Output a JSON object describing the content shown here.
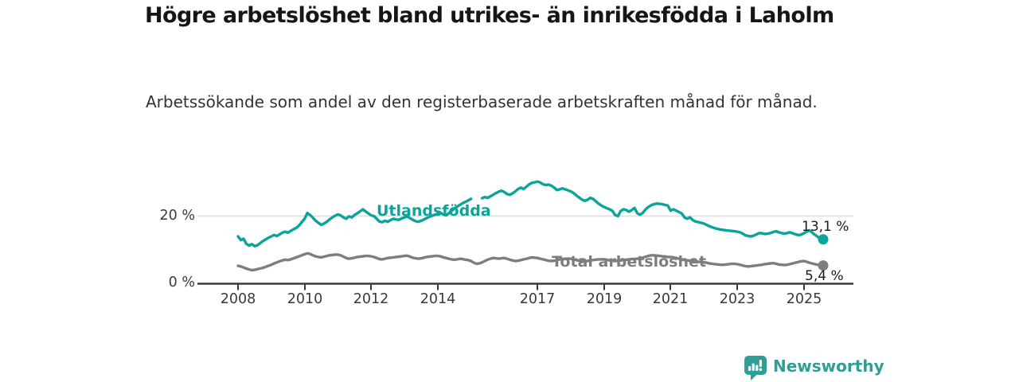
{
  "header": {
    "title": "Högre arbetslöshet bland utrikes- än inrikesfödda i Laholm",
    "subtitle": "Arbetssökande som andel av den registerbaserade arbetskraften månad för månad."
  },
  "footer": {
    "brand": "Newsworthy",
    "logo_icon": "newsworthy-speech-bubble-bar-chart-icon"
  },
  "colors": {
    "foreign_born_line": "#0ba49a",
    "total_line": "#7e7e82",
    "axis": "#3a3a3a",
    "gridline": "#dcdcdc",
    "value_text": "#1a1a1a",
    "brand_teal": "#2f9e99"
  },
  "chart_data": {
    "type": "line",
    "title": "Högre arbetslöshet bland utrikes- än inrikesfödda i Laholm",
    "subtitle": "Arbetssökande som andel av den registerbaserade arbetskraften månad för månad.",
    "unit": "percent",
    "frequency": "monthly",
    "x_start": "2008-01",
    "x_end": "2025-08",
    "ylim": [
      0,
      31
    ],
    "grid": "single horizontal gridline at 20 %",
    "legend": "inline labels on lines",
    "note": "Utlandsfödda series has missing data Feb–Apr 2015 (gap in line)",
    "yticks": [
      {
        "value": 0,
        "label": "0 %"
      },
      {
        "value": 20,
        "label": "20 %"
      }
    ],
    "xticks": [
      {
        "year": 2008,
        "label": "2008"
      },
      {
        "year": 2010,
        "label": "2010"
      },
      {
        "year": 2012,
        "label": "2012"
      },
      {
        "year": 2014,
        "label": "2014"
      },
      {
        "year": 2017,
        "label": "2017"
      },
      {
        "year": 2019,
        "label": "2019"
      },
      {
        "year": 2021,
        "label": "2021"
      },
      {
        "year": 2023,
        "label": "2023"
      },
      {
        "year": 2025,
        "label": "2025"
      }
    ],
    "series": [
      {
        "name": "Utlandsfödda",
        "color": "#0ba49a",
        "end_label": "13,1 %",
        "end_value": 13.1,
        "values": [
          14.0,
          12.9,
          13.3,
          11.8,
          11.3,
          11.7,
          11.1,
          11.4,
          12.0,
          12.6,
          13.1,
          13.6,
          14.0,
          14.4,
          14.1,
          14.6,
          15.1,
          15.4,
          15.1,
          15.6,
          16.1,
          16.5,
          17.2,
          18.2,
          19.2,
          20.9,
          20.3,
          19.5,
          18.6,
          18.0,
          17.4,
          17.8,
          18.3,
          19.0,
          19.6,
          20.1,
          20.5,
          20.2,
          19.6,
          19.2,
          19.9,
          19.6,
          20.3,
          20.8,
          21.4,
          22.0,
          21.4,
          20.8,
          20.2,
          20.0,
          19.2,
          18.4,
          18.2,
          18.6,
          18.3,
          18.8,
          19.2,
          19.0,
          18.9,
          19.3,
          19.6,
          19.9,
          19.4,
          18.9,
          18.5,
          18.3,
          18.6,
          19.0,
          19.4,
          19.8,
          20.1,
          20.4,
          20.7,
          21.0,
          20.5,
          20.2,
          20.8,
          21.5,
          22.2,
          22.8,
          23.3,
          23.8,
          24.2,
          24.6,
          25.1,
          null,
          null,
          null,
          25.3,
          25.6,
          25.4,
          25.8,
          26.3,
          26.8,
          27.2,
          27.5,
          27.1,
          26.5,
          26.3,
          26.7,
          27.3,
          28.0,
          28.4,
          28.0,
          28.7,
          29.4,
          29.8,
          30.0,
          30.2,
          29.9,
          29.4,
          29.2,
          29.3,
          29.0,
          28.4,
          27.7,
          27.9,
          28.2,
          27.9,
          27.6,
          27.3,
          26.8,
          26.1,
          25.5,
          24.9,
          24.5,
          24.8,
          25.4,
          25.1,
          24.4,
          23.7,
          23.1,
          22.7,
          22.3,
          22.0,
          21.5,
          20.3,
          20.0,
          21.5,
          22.0,
          21.8,
          21.3,
          21.8,
          22.4,
          20.8,
          20.4,
          21.0,
          22.0,
          22.7,
          23.2,
          23.5,
          23.7,
          23.6,
          23.5,
          23.3,
          23.1,
          21.6,
          22.0,
          21.6,
          21.2,
          20.8,
          19.6,
          19.2,
          19.6,
          18.8,
          18.4,
          18.2,
          18.0,
          17.8,
          17.4,
          17.0,
          16.7,
          16.4,
          16.2,
          16.0,
          15.9,
          15.8,
          15.7,
          15.6,
          15.5,
          15.4,
          15.2,
          14.8,
          14.3,
          14.1,
          14.0,
          14.2,
          14.6,
          15.0,
          14.9,
          14.7,
          14.8,
          15.0,
          15.3,
          15.5,
          15.2,
          15.0,
          14.8,
          15.0,
          15.2,
          14.9,
          14.6,
          14.4,
          14.5,
          14.9,
          15.4,
          15.8,
          15.2,
          14.5,
          13.9,
          13.4,
          13.1
        ]
      },
      {
        "name": "Total arbetslöshet",
        "color": "#7e7e82",
        "end_label": "5,4 %",
        "end_value": 5.4,
        "values": [
          5.3,
          5.1,
          4.8,
          4.5,
          4.2,
          4.0,
          4.1,
          4.3,
          4.5,
          4.7,
          5.0,
          5.3,
          5.6,
          6.0,
          6.3,
          6.6,
          6.9,
          7.1,
          7.0,
          7.2,
          7.5,
          7.8,
          8.1,
          8.4,
          8.7,
          9.0,
          8.8,
          8.4,
          8.1,
          7.9,
          7.8,
          8.0,
          8.2,
          8.4,
          8.5,
          8.6,
          8.6,
          8.4,
          8.0,
          7.6,
          7.4,
          7.5,
          7.7,
          7.9,
          8.0,
          8.1,
          8.2,
          8.2,
          8.1,
          7.9,
          7.6,
          7.3,
          7.2,
          7.4,
          7.6,
          7.7,
          7.8,
          7.9,
          8.0,
          8.1,
          8.2,
          8.3,
          8.0,
          7.7,
          7.5,
          7.4,
          7.5,
          7.7,
          7.9,
          8.0,
          8.1,
          8.2,
          8.2,
          8.1,
          7.8,
          7.6,
          7.4,
          7.2,
          7.1,
          7.2,
          7.4,
          7.3,
          7.1,
          7.0,
          6.7,
          6.2,
          5.9,
          6.0,
          6.3,
          6.7,
          7.1,
          7.4,
          7.6,
          7.5,
          7.4,
          7.5,
          7.6,
          7.4,
          7.1,
          6.9,
          6.7,
          6.8,
          7.0,
          7.2,
          7.4,
          7.6,
          7.8,
          7.7,
          7.6,
          7.4,
          7.2,
          7.0,
          6.8,
          6.7,
          6.8,
          7.0,
          7.2,
          7.3,
          7.4,
          7.4,
          7.4,
          7.2,
          7.0,
          6.8,
          6.7,
          6.6,
          6.7,
          6.9,
          7.0,
          7.1,
          7.2,
          7.2,
          7.2,
          7.1,
          6.9,
          6.8,
          6.7,
          6.8,
          6.9,
          7.0,
          7.1,
          7.2,
          7.3,
          7.3,
          7.4,
          7.5,
          7.7,
          8.0,
          8.2,
          8.4,
          8.4,
          8.3,
          8.2,
          8.1,
          8.0,
          7.9,
          7.9,
          7.8,
          7.6,
          7.4,
          7.2,
          7.0,
          6.9,
          6.8,
          6.7,
          6.6,
          6.5,
          6.4,
          6.3,
          6.2,
          6.0,
          5.9,
          5.8,
          5.7,
          5.6,
          5.6,
          5.7,
          5.8,
          5.9,
          5.9,
          5.8,
          5.6,
          5.4,
          5.2,
          5.1,
          5.2,
          5.3,
          5.4,
          5.5,
          5.6,
          5.8,
          5.9,
          6.0,
          6.1,
          5.9,
          5.7,
          5.6,
          5.5,
          5.6,
          5.8,
          6.0,
          6.2,
          6.4,
          6.6,
          6.7,
          6.5,
          6.2,
          6.0,
          5.8,
          5.6,
          5.5,
          5.4
        ]
      }
    ]
  }
}
